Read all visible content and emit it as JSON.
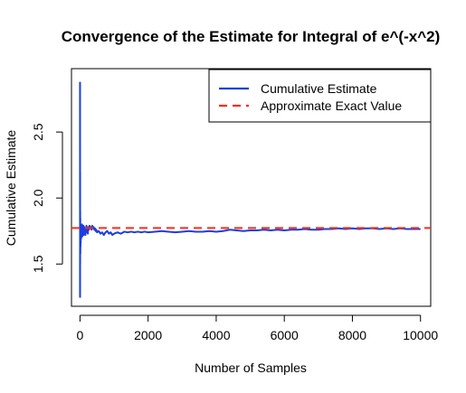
{
  "chart_data": {
    "type": "line",
    "title": "Convergence of the Estimate for Integral of e^(-x^2)",
    "xlabel": "Number of Samples",
    "ylabel": "Cumulative Estimate",
    "xlim": [
      -250,
      10300
    ],
    "ylim": [
      1.18,
      2.98
    ],
    "x_ticks": [
      0,
      2000,
      4000,
      6000,
      8000,
      10000
    ],
    "x_tick_labels": [
      "0",
      "2000",
      "4000",
      "6000",
      "8000",
      "10000"
    ],
    "y_ticks": [
      1.5,
      2.0,
      2.5
    ],
    "y_tick_labels": [
      "1.5",
      "2.0",
      "2.5"
    ],
    "grid": false,
    "legend_position": "top-right",
    "series": [
      {
        "name": "Cumulative Estimate",
        "color": "#1a3fe0",
        "style": "solid",
        "x": [
          1,
          2,
          3,
          4,
          5,
          6,
          8,
          10,
          12,
          15,
          18,
          22,
          26,
          30,
          35,
          40,
          45,
          50,
          60,
          70,
          80,
          90,
          100,
          110,
          120,
          130,
          140,
          150,
          160,
          170,
          180,
          190,
          200,
          215,
          230,
          245,
          260,
          280,
          300,
          320,
          340,
          360,
          380,
          400,
          420,
          440,
          460,
          480,
          500,
          550,
          600,
          650,
          700,
          750,
          800,
          850,
          900,
          950,
          1000,
          1100,
          1200,
          1300,
          1400,
          1500,
          1600,
          1700,
          1800,
          1900,
          2000,
          2200,
          2400,
          2600,
          2800,
          3000,
          3200,
          3400,
          3600,
          3800,
          4000,
          4200,
          4400,
          4600,
          4800,
          5000,
          5200,
          5400,
          5600,
          5800,
          6000,
          6200,
          6400,
          6600,
          6800,
          7000,
          7200,
          7400,
          7600,
          7800,
          8000,
          8200,
          8400,
          8600,
          8800,
          9000,
          9200,
          9400,
          9600,
          9800,
          10000
        ],
        "values": [
          2.88,
          1.25,
          2.2,
          1.5,
          1.9,
          1.62,
          1.85,
          1.58,
          1.77,
          1.63,
          1.72,
          1.66,
          1.78,
          1.69,
          1.74,
          1.7,
          1.76,
          1.72,
          1.8,
          1.71,
          1.77,
          1.73,
          1.79,
          1.72,
          1.75,
          1.78,
          1.73,
          1.76,
          1.72,
          1.77,
          1.74,
          1.79,
          1.75,
          1.77,
          1.73,
          1.78,
          1.76,
          1.79,
          1.77,
          1.78,
          1.76,
          1.79,
          1.77,
          1.78,
          1.76,
          1.77,
          1.75,
          1.76,
          1.74,
          1.75,
          1.73,
          1.74,
          1.72,
          1.74,
          1.75,
          1.73,
          1.74,
          1.72,
          1.73,
          1.74,
          1.73,
          1.745,
          1.74,
          1.745,
          1.74,
          1.745,
          1.74,
          1.745,
          1.74,
          1.745,
          1.75,
          1.745,
          1.74,
          1.745,
          1.75,
          1.745,
          1.745,
          1.75,
          1.745,
          1.75,
          1.76,
          1.755,
          1.75,
          1.755,
          1.755,
          1.76,
          1.755,
          1.76,
          1.755,
          1.76,
          1.76,
          1.765,
          1.76,
          1.76,
          1.765,
          1.765,
          1.77,
          1.765,
          1.77,
          1.765,
          1.77,
          1.77,
          1.765,
          1.77,
          1.765,
          1.77,
          1.765,
          1.765,
          1.765
        ]
      },
      {
        "name": "Approximate Exact Value",
        "color": "#ff2a1a",
        "style": "dashed",
        "value": 1.7725
      }
    ]
  }
}
